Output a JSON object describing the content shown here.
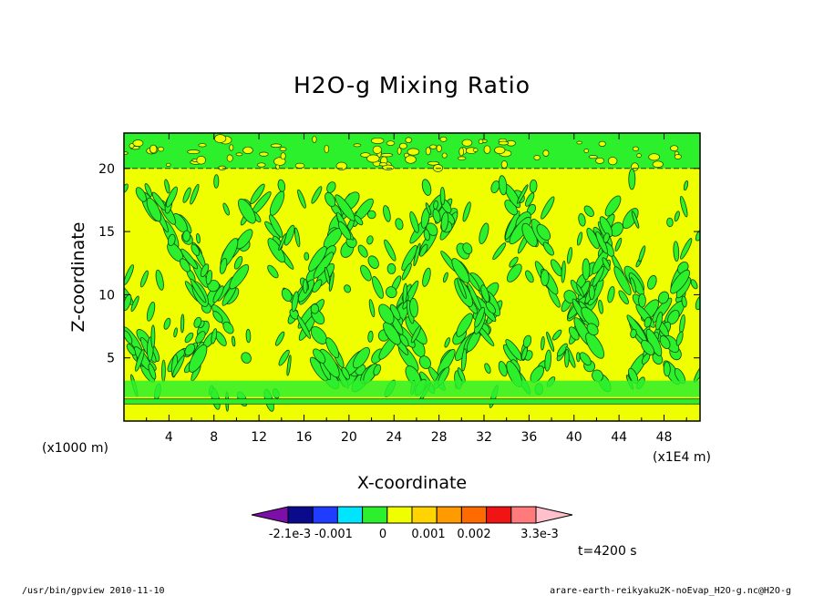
{
  "chart_data": {
    "type": "heatmap",
    "title": "H2O-g Mixing Ratio",
    "xlabel": "X-coordinate",
    "ylabel": "Z-coordinate",
    "x_units_left": "(x1000 m)",
    "x_units_right": "(x1E4 m)",
    "x_ticks": [
      "4",
      "8",
      "12",
      "16",
      "20",
      "24",
      "28",
      "32",
      "36",
      "40",
      "44",
      "48"
    ],
    "y_ticks": [
      "5",
      "10",
      "15",
      "20"
    ],
    "xlim": [
      0,
      51.2
    ],
    "ylim": [
      0,
      22.8
    ],
    "colorbar": {
      "colors": [
        "#7b0fa8",
        "#0a0a8c",
        "#1f3cff",
        "#00e5ff",
        "#2df02d",
        "#f0ff00",
        "#ffd400",
        "#ff9a00",
        "#ff6a00",
        "#f01414",
        "#ff7a7a",
        "#ffc0cb"
      ],
      "tick_labels": [
        "-2.1e-3",
        "-0.001",
        "0",
        "0.001",
        "0.002",
        "3.3e-3"
      ]
    },
    "time_label": "t=4200 s"
  },
  "footer": {
    "left": "/usr/bin/gpview   2010-11-10",
    "right": "arare-earth-reikyaku2K-noEvap_H2O-g.nc@H2O-g"
  }
}
